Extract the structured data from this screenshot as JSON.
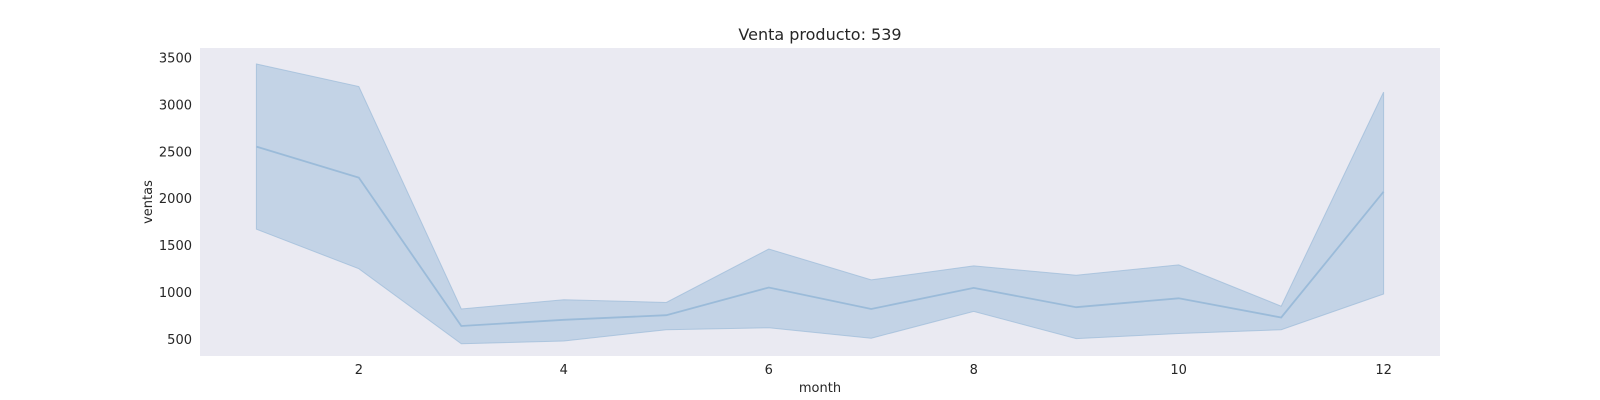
{
  "chart_data": {
    "type": "area",
    "title": "Venta producto: 539",
    "xlabel": "month",
    "ylabel": "ventas",
    "xlim": [
      0.45,
      12.55
    ],
    "ylim": [
      320,
      3600
    ],
    "xticks": [
      2,
      4,
      6,
      8,
      10,
      12
    ],
    "yticks": [
      500,
      1000,
      1500,
      2000,
      2500,
      3000,
      3500
    ],
    "grid": false,
    "legend": "none",
    "colors": {
      "plot_bg": "#eaeaf2",
      "line": "#9bbbd9",
      "band": "#9bbbd9"
    },
    "x": [
      1,
      2,
      3,
      4,
      5,
      6,
      7,
      8,
      9,
      10,
      11,
      12
    ],
    "series": [
      {
        "mean": [
          2550,
          2220,
          640,
          705,
          755,
          1050,
          820,
          1045,
          840,
          935,
          730,
          2070
        ],
        "lower": [
          1670,
          1250,
          450,
          480,
          600,
          620,
          510,
          795,
          505,
          560,
          600,
          980
        ],
        "upper": [
          3430,
          3190,
          820,
          920,
          890,
          1460,
          1130,
          1280,
          1180,
          1290,
          850,
          3130
        ]
      }
    ]
  }
}
